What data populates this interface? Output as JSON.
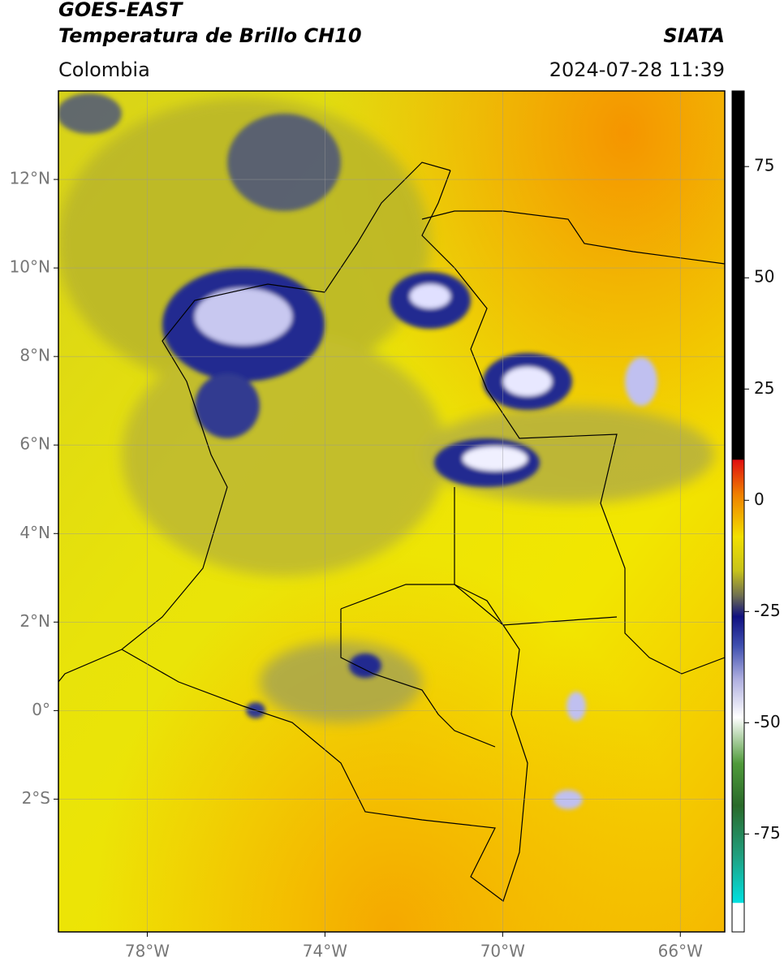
{
  "header": {
    "title_line1": "GOES-EAST",
    "title_line2": "Temperatura de Brillo CH10",
    "region": "Colombia",
    "source": "SIATA",
    "timestamp": "2024-07-28 11:39"
  },
  "map": {
    "lonlim": [
      -80,
      -65
    ],
    "latlim": [
      -5,
      14
    ],
    "lonticks": [
      {
        "value": -78,
        "label": "78°W"
      },
      {
        "value": -74,
        "label": "74°W"
      },
      {
        "value": -70,
        "label": "70°W"
      },
      {
        "value": -66,
        "label": "66°W"
      }
    ],
    "latticks": [
      {
        "value": 12,
        "label": "12°N"
      },
      {
        "value": 10,
        "label": "10°N"
      },
      {
        "value": 8,
        "label": "8°N"
      },
      {
        "value": 6,
        "label": "6°N"
      },
      {
        "value": 4,
        "label": "4°N"
      },
      {
        "value": 2,
        "label": "2°N"
      },
      {
        "value": 0,
        "label": "0°"
      },
      {
        "value": -2,
        "label": "2°S"
      }
    ]
  },
  "colorbar": {
    "range": [
      -97,
      92
    ],
    "ticks": [
      75,
      50,
      25,
      0,
      -25,
      -50,
      -75
    ]
  }
}
